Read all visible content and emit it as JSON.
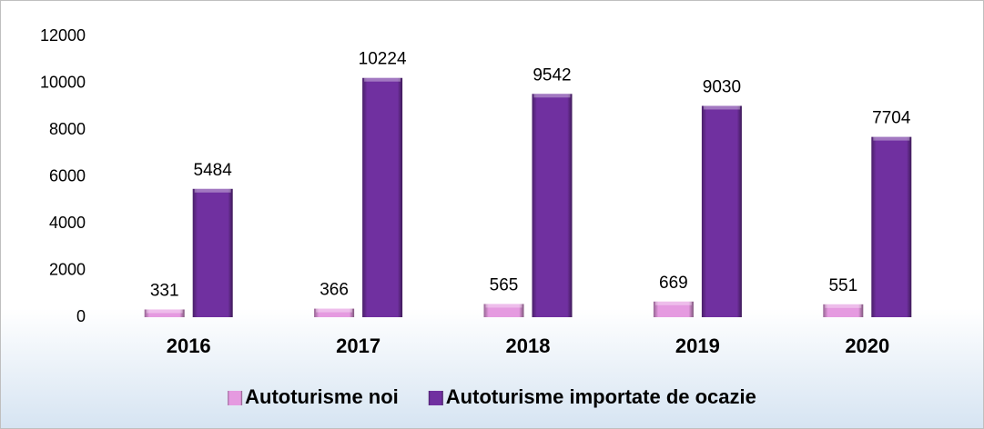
{
  "chart_data": {
    "type": "bar",
    "categories": [
      "2016",
      "2017",
      "2018",
      "2019",
      "2020"
    ],
    "series": [
      {
        "name": "Autoturisme noi",
        "color": "#e59ae0",
        "values": [
          331,
          366,
          565,
          669,
          551
        ]
      },
      {
        "name": "Autoturisme importate de ocazie",
        "color": "#7030a0",
        "values": [
          5484,
          10224,
          9542,
          9030,
          7704
        ]
      }
    ],
    "ylim": [
      0,
      12000
    ],
    "yticks": [
      0,
      2000,
      4000,
      6000,
      8000,
      10000,
      12000
    ],
    "grid": false,
    "legend": "bottom"
  }
}
